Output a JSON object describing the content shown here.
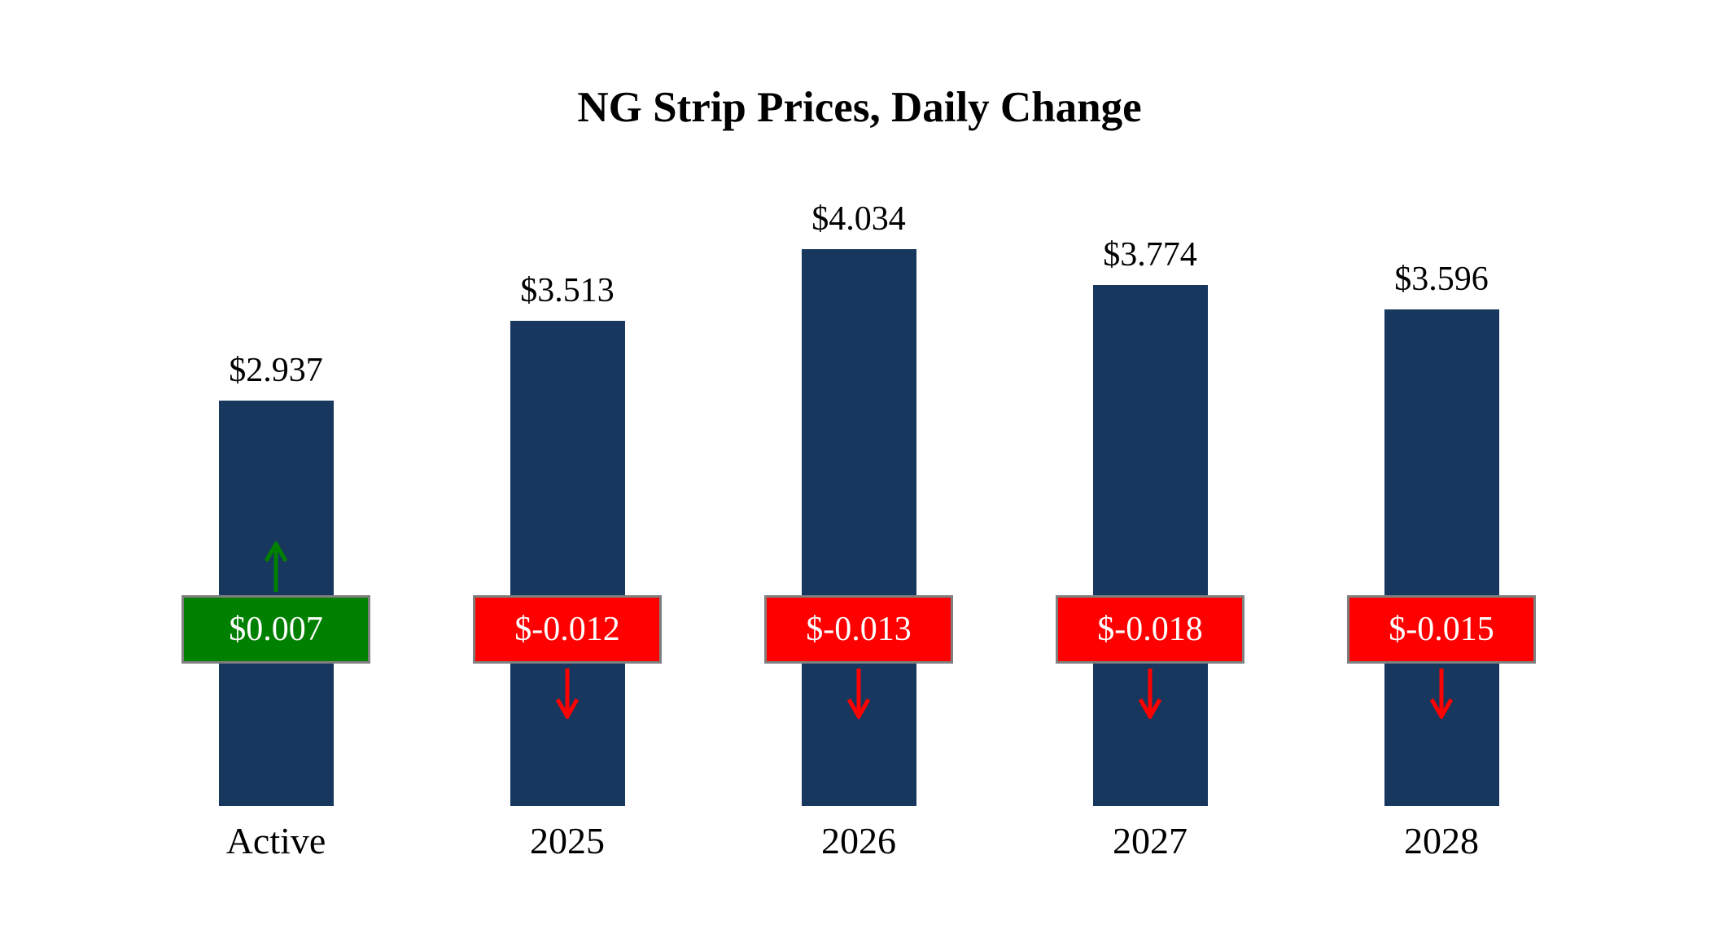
{
  "chart_data": {
    "type": "bar",
    "title": "NG Strip Prices, Daily Change",
    "categories": [
      "Active",
      "2025",
      "2026",
      "2027",
      "2028"
    ],
    "values": [
      2.937,
      3.513,
      4.034,
      3.774,
      3.596
    ],
    "value_labels": [
      "$2.937",
      "$3.513",
      "$4.034",
      "$3.774",
      "$3.596"
    ],
    "changes": [
      0.007,
      -0.012,
      -0.013,
      -0.018,
      -0.015
    ],
    "change_labels": [
      "$0.007",
      "$-0.012",
      "$-0.013",
      "$-0.018",
      "$-0.015"
    ],
    "bar_color": "#17375E",
    "up_color": "#008000",
    "down_color": "#FF0000",
    "badge_border_color": "#7f7f7f",
    "xlabel": "",
    "ylabel": "",
    "ylim": [
      0,
      4.5
    ],
    "grid": false,
    "legend": false
  }
}
